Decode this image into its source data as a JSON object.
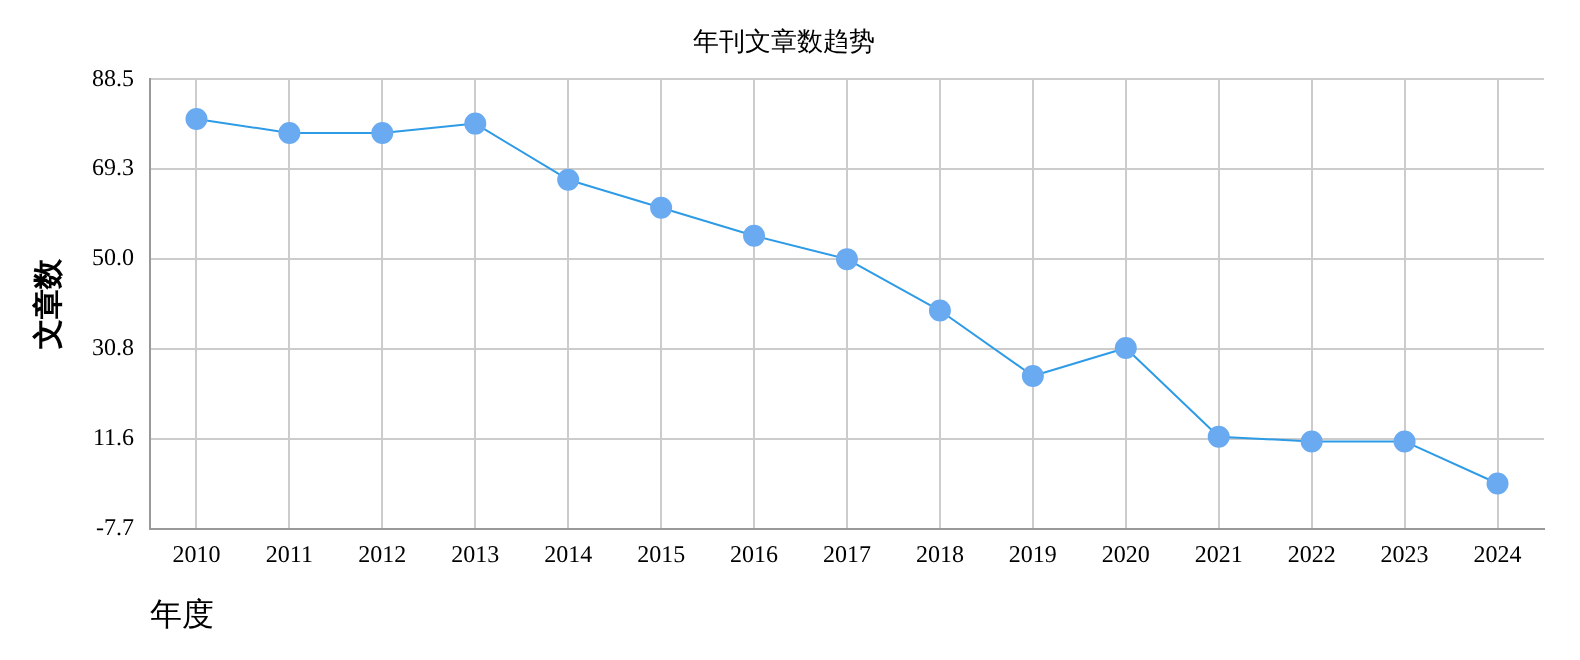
{
  "chart_data": {
    "type": "line",
    "title": "年刊文章数趋势",
    "xlabel": "年度",
    "ylabel": "文章数",
    "categories": [
      "2010",
      "2011",
      "2012",
      "2013",
      "2014",
      "2015",
      "2016",
      "2017",
      "2018",
      "2019",
      "2020",
      "2021",
      "2022",
      "2023",
      "2024"
    ],
    "series": [
      {
        "color": "#2e9be6",
        "values": [
          80,
          77,
          77,
          79,
          67,
          61,
          55,
          50,
          39,
          25,
          31,
          12,
          11,
          11,
          2
        ]
      }
    ],
    "ylim": [
      -7.7,
      88.5
    ],
    "yticks": [
      {
        "value": -7.7,
        "label": "-7.7"
      },
      {
        "value": 11.6,
        "label": "11.6"
      },
      {
        "value": 30.8,
        "label": "30.8"
      },
      {
        "value": 50,
        "label": "50.0"
      },
      {
        "value": 69.3,
        "label": "69.3"
      },
      {
        "value": 88.5,
        "label": "88.5"
      }
    ],
    "grid": true,
    "marker": "circle",
    "line_style": "solid",
    "legend": false
  }
}
